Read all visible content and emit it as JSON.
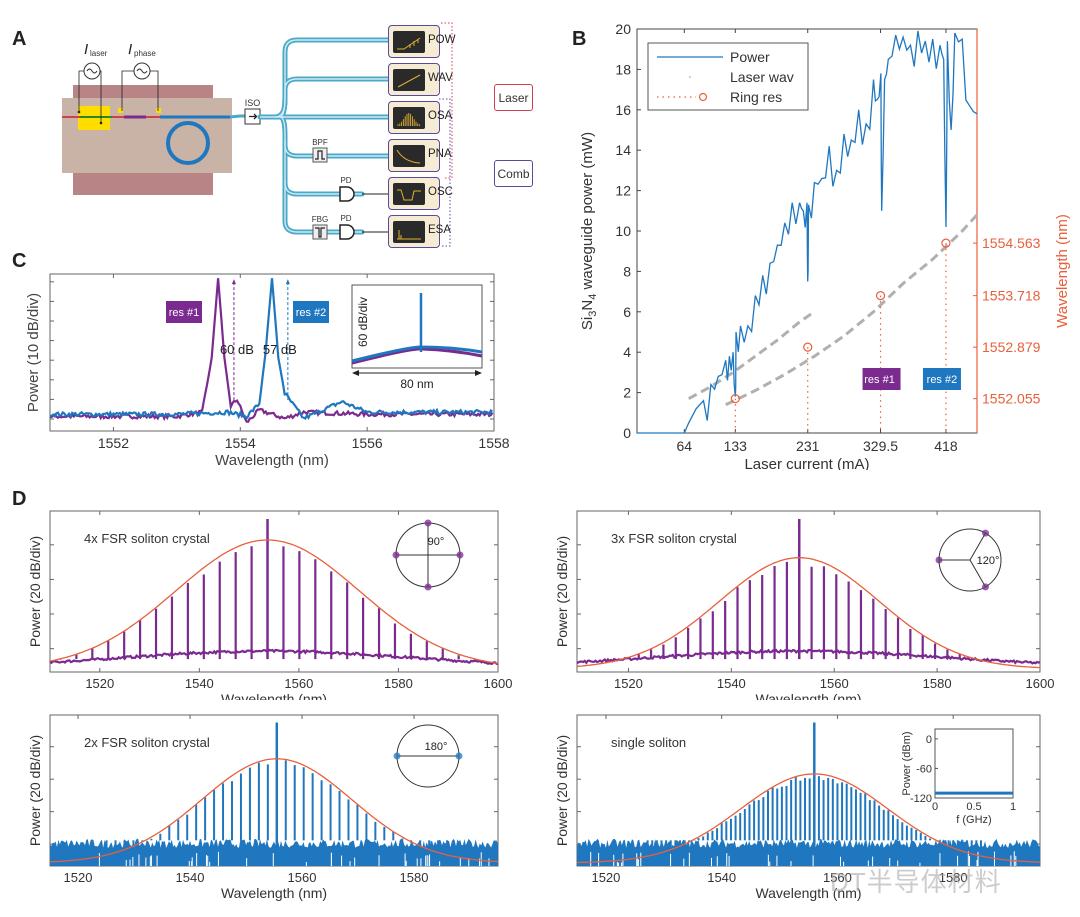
{
  "panel_labels": {
    "a": "A",
    "b": "B",
    "c": "C",
    "d": "D"
  },
  "colors": {
    "blue": "#1f77c0",
    "purple": "#7b2a8f",
    "orange": "#e8603c",
    "gray": "#b0b0b0",
    "instrument_fill": "#f6ecd4",
    "instrument_border": "#5a4a9c",
    "screen": "#2a2a2a",
    "trace": "#e0b030",
    "chip_top": "#c9b2a6",
    "chip_base": "#b98486",
    "fiber": "#4aa8c8",
    "laser_box_border": "#d0404a",
    "comb_box_border": "#5a4a9c"
  },
  "panel_a": {
    "sources": [
      {
        "symbol": "I",
        "subscript": "laser"
      },
      {
        "symbol": "I",
        "subscript": "phase"
      }
    ],
    "isolator_label": "ISO",
    "filters": {
      "bpf": "BPF",
      "fbg": "FBG",
      "pd1": "PD",
      "pd2": "PD"
    },
    "instruments": [
      "POW",
      "WAV",
      "OSA",
      "PNA",
      "OSC",
      "ESA"
    ],
    "groups": {
      "laser": "Laser",
      "comb": "Comb"
    }
  },
  "chart_data": [
    {
      "id": "B",
      "type": "line",
      "title": "",
      "xlabel": "Laser current (mA)",
      "ylabel": "Si3N4 waveguide power (mW)",
      "ylabel_parts": {
        "a": "Si",
        "b": "3",
        "c": "N",
        "d": "4",
        "e": " waveguide power (mW)"
      },
      "y2label": "Wavelength (nm)",
      "xlim": [
        0,
        460
      ],
      "ylim": [
        0,
        20
      ],
      "x_ticks": [
        64,
        133,
        231,
        329.5,
        418
      ],
      "x_tick_labels": [
        "64",
        "133",
        "231",
        "329.5",
        "418"
      ],
      "y_ticks": [
        0,
        2,
        4,
        6,
        8,
        10,
        12,
        14,
        16,
        18,
        20
      ],
      "y2_ticks": [
        1552.055,
        1552.879,
        1553.718,
        1554.563
      ],
      "y2_tick_labels": [
        "1552.055",
        "1552.879",
        "1553.718",
        "1554.563"
      ],
      "legend": {
        "position": "top-left",
        "entries": [
          "Power",
          "Laser wav",
          "Ring res"
        ]
      },
      "series": [
        {
          "name": "Power",
          "x": [
            0,
            64,
            70,
            80,
            90,
            100,
            110,
            120,
            125,
            130,
            133,
            134,
            140,
            150,
            160,
            170,
            180,
            190,
            200,
            210,
            220,
            225,
            230,
            231,
            232,
            240,
            250,
            260,
            270,
            280,
            290,
            300,
            310,
            320,
            325,
            330,
            331,
            335,
            340,
            350,
            360,
            370,
            380,
            390,
            400,
            410,
            415,
            418,
            420,
            425,
            430,
            440,
            450,
            460
          ],
          "y": [
            0,
            0,
            0.5,
            1.2,
            1.6,
            2.4,
            2.8,
            3.6,
            3.8,
            4.0,
            1.8,
            5.0,
            5.3,
            5.3,
            6.8,
            7.8,
            8.4,
            9.3,
            10.4,
            11.4,
            11.4,
            11.0,
            11.4,
            7.5,
            11.3,
            12.4,
            12.6,
            14.2,
            13.0,
            14.8,
            14.5,
            16.0,
            15.3,
            17.5,
            16.5,
            17.8,
            11.0,
            17.5,
            18.5,
            19.7,
            19.6,
            19.2,
            19.9,
            19.4,
            19.5,
            19.2,
            18.5,
            10.2,
            19.4,
            15.0,
            19.8,
            19.5,
            16.2,
            15.8
          ]
        },
        {
          "name": "Laser wav (mode 1)",
          "x": [
            70,
            100,
            130,
            160,
            190,
            220,
            240
          ],
          "y": [
            1.7,
            2.3,
            3.0,
            3.8,
            4.6,
            5.5,
            6.0
          ]
        },
        {
          "name": "Laser wav (mode 2)",
          "x": [
            120,
            160,
            200,
            240,
            280,
            320,
            360,
            400,
            440,
            460
          ],
          "y": [
            1.4,
            2.1,
            2.9,
            3.8,
            4.8,
            6.0,
            7.4,
            8.6,
            10.0,
            10.8
          ]
        },
        {
          "name": "Ring res",
          "x": [
            133,
            231,
            329.5,
            418
          ],
          "y": [
            1.7,
            4.25,
            6.8,
            9.4
          ]
        }
      ],
      "annotations": [
        {
          "text": "res #1",
          "x": 329.5,
          "color": "#7b2a8f"
        },
        {
          "text": "res #2",
          "x": 418,
          "color": "#1f77c0"
        }
      ]
    },
    {
      "id": "C",
      "type": "line",
      "xlabel": "Wavelength (nm)",
      "ylabel": "Power (10 dB/div)",
      "xlim": [
        1551,
        1558
      ],
      "ylim": [
        0,
        7.5
      ],
      "x_ticks": [
        1552,
        1554,
        1556,
        1558
      ],
      "x_tick_labels": [
        "1552",
        "1554",
        "1556",
        "1558"
      ],
      "series": [
        {
          "name": "res #1",
          "color": "#7b2a8f",
          "x": [
            1551,
            1553,
            1553.4,
            1553.55,
            1553.65,
            1553.75,
            1553.85,
            1553.95,
            1554.1,
            1554.3,
            1554.5,
            1554.7,
            1555,
            1556,
            1558
          ],
          "y": [
            0.7,
            0.7,
            0.9,
            3.5,
            7.3,
            3.5,
            1.2,
            1.5,
            0.4,
            1.0,
            0.8,
            0.6,
            0.9,
            0.8,
            0.8
          ]
        },
        {
          "name": "res #2",
          "color": "#1f77c0",
          "x": [
            1551,
            1553,
            1553.8,
            1554.1,
            1554.3,
            1554.4,
            1554.5,
            1554.6,
            1554.7,
            1554.8,
            1555,
            1555.6,
            1556,
            1558
          ],
          "y": [
            0.8,
            0.8,
            0.9,
            0.7,
            1.3,
            3.8,
            7.3,
            3.5,
            1.8,
            1.4,
            0.6,
            1.4,
            0.9,
            0.9
          ]
        }
      ],
      "annotations": [
        {
          "text": "res #1",
          "color": "#7b2a8f"
        },
        {
          "text": "res #2",
          "color": "#1f77c0"
        },
        {
          "text": "60 dB",
          "x": 1553.9
        },
        {
          "text": "57 dB",
          "x": 1554.75
        }
      ],
      "inset": {
        "ylabel": "60 dB/div",
        "span_label": "80 nm"
      }
    },
    {
      "id": "D1",
      "type": "bar",
      "title": "4x FSR soliton crystal",
      "diagram_angle": "90°",
      "color": "#7b2a8f",
      "xlabel": "Wavelength (nm)",
      "ylabel": "Power (20 dB/div)",
      "xlim": [
        1510,
        1600
      ],
      "x_ticks": [
        1520,
        1540,
        1560,
        1580,
        1600
      ],
      "x_tick_labels": [
        "1520",
        "1540",
        "1560",
        "1580",
        "1600"
      ],
      "center": 1553.7,
      "spacing_nm": 3.2,
      "envelope_width_nm": 26,
      "peak_level": 0.83,
      "pump_level": 0.95,
      "floor_level": 0.1
    },
    {
      "id": "D2",
      "type": "bar",
      "title": "3x FSR soliton crystal",
      "diagram_angle": "120°",
      "color": "#7b2a8f",
      "xlabel": "Wavelength (nm)",
      "ylabel": "Power (20 dB/div)",
      "xlim": [
        1510,
        1600
      ],
      "x_ticks": [
        1520,
        1540,
        1560,
        1580,
        1600
      ],
      "x_tick_labels": [
        "1520",
        "1540",
        "1560",
        "1580",
        "1600"
      ],
      "center": 1553.2,
      "spacing_nm": 2.4,
      "envelope_width_nm": 22,
      "peak_level": 0.72,
      "pump_level": 0.95,
      "floor_level": 0.1
    },
    {
      "id": "D3",
      "type": "bar",
      "title": "2x FSR soliton crystal",
      "diagram_angle": "180°",
      "color": "#1f77c0",
      "xlabel": "Wavelength (nm)",
      "ylabel": "Power (20 dB/div)",
      "xlim": [
        1515,
        1595
      ],
      "x_ticks": [
        1520,
        1540,
        1560,
        1580
      ],
      "x_tick_labels": [
        "1520",
        "1540",
        "1560",
        "1580"
      ],
      "center": 1555.5,
      "spacing_nm": 1.6,
      "envelope_width_nm": 19,
      "peak_level": 0.72,
      "pump_level": 0.95,
      "floor_level": 0.1
    },
    {
      "id": "D4",
      "type": "bar",
      "title": "single soliton",
      "color": "#1f77c0",
      "xlabel": "Wavelength (nm)",
      "ylabel": "Power (20 dB/div)",
      "xlim": [
        1515,
        1595
      ],
      "x_ticks": [
        1520,
        1540,
        1560,
        1580
      ],
      "x_tick_labels": [
        "1520",
        "1540",
        "1560",
        "1580"
      ],
      "center": 1556,
      "spacing_nm": 0.8,
      "envelope_width_nm": 18,
      "peak_level": 0.62,
      "pump_level": 0.95,
      "floor_level": 0.1,
      "inset": {
        "ylabel": "Power (dBm)",
        "xlabel": "f (GHz)",
        "y_tick_labels": [
          "0",
          "-60",
          "-120"
        ],
        "x_tick_labels": [
          "0",
          "0.5",
          "1"
        ],
        "level_dBm": -110
      }
    }
  ],
  "watermark": "DT半导体材料"
}
